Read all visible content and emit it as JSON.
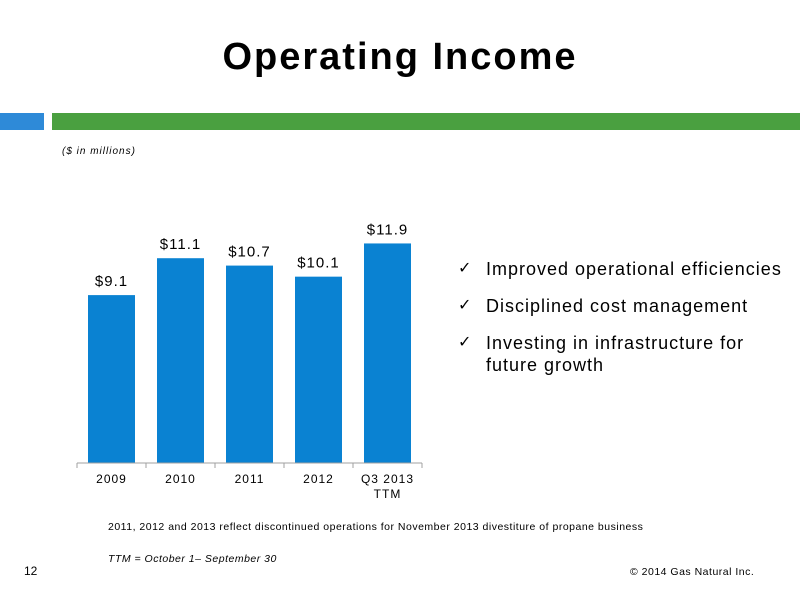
{
  "slide": {
    "title": "Operating Income",
    "units_note": "($ in millions)",
    "footnote": "2011, 2012 and 2013 reflect discontinued operations for November 2013 divestiture of propane business",
    "ttm_note": "TTM = October 1– September 30",
    "page_number": "12",
    "copyright": "© 2014 Gas Natural Inc."
  },
  "bullets": [
    {
      "text": "Improved operational efficiencies"
    },
    {
      "text": "Disciplined cost management"
    },
    {
      "text": "Investing in infrastructure for future growth"
    }
  ],
  "colors": {
    "bar": "#0a82d2",
    "band_blue": "#2e8ad8",
    "band_green": "#4aa040"
  },
  "chart_data": {
    "type": "bar",
    "categories": [
      "2009",
      "2010",
      "2011",
      "2012",
      "Q3 2013\nTTM"
    ],
    "values": [
      9.1,
      11.1,
      10.7,
      10.1,
      11.9
    ],
    "data_labels": [
      "$9.1",
      "$11.1",
      "$10.7",
      "$10.1",
      "$11.9"
    ],
    "title": "",
    "ylim": [
      0,
      15
    ],
    "grid": false,
    "legend": "none"
  }
}
